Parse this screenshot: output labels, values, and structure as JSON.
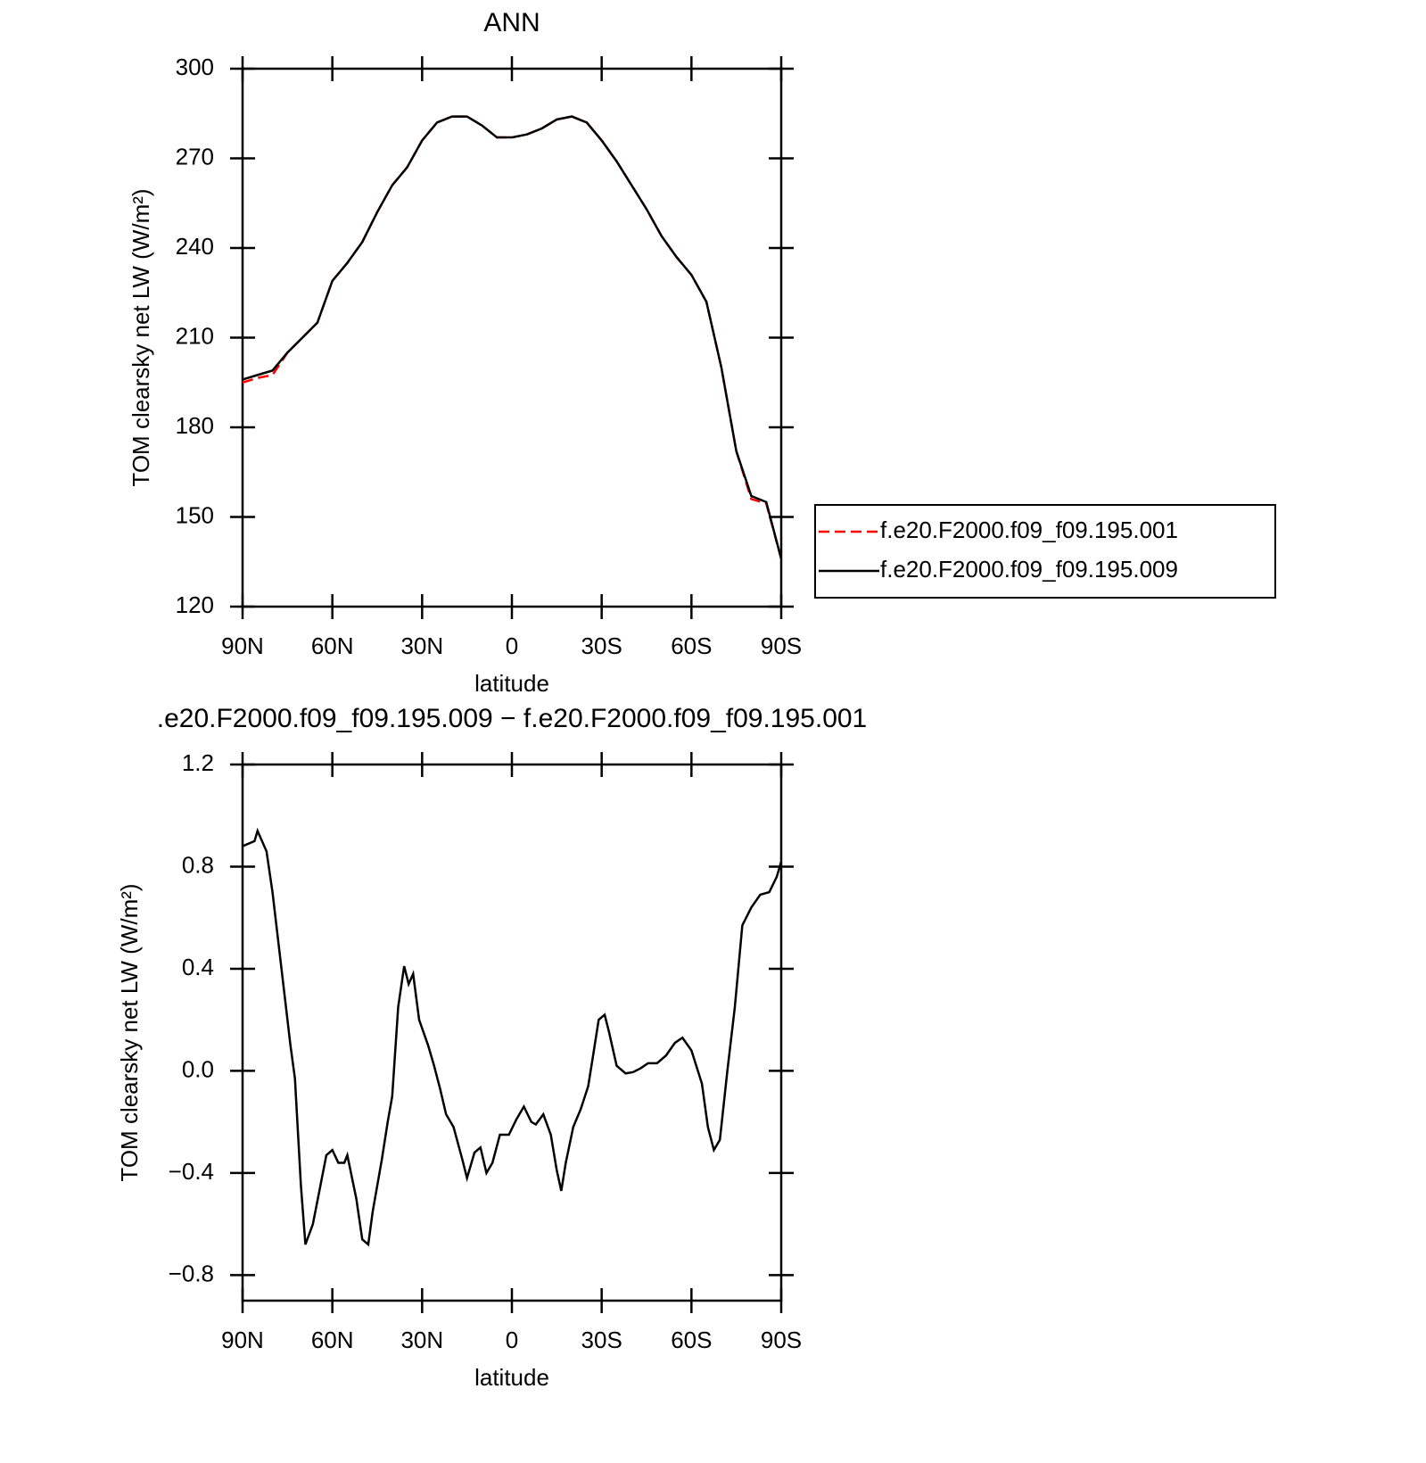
{
  "chart_data": [
    {
      "type": "line",
      "title": "ANN",
      "xlabel": "latitude",
      "ylabel": "TOM clearsky net LW (W/m²)",
      "xlim": [
        90,
        -90
      ],
      "ylim": [
        120,
        300
      ],
      "xticks": [
        {
          "value": 90,
          "label": "90N"
        },
        {
          "value": 60,
          "label": "60N"
        },
        {
          "value": 30,
          "label": "30N"
        },
        0,
        {
          "value": -30,
          "label": "30S"
        },
        {
          "value": -60,
          "label": "60S"
        },
        {
          "value": -90,
          "label": "90S"
        }
      ],
      "yticks": [
        120,
        150,
        180,
        210,
        240,
        270,
        300
      ],
      "legend": "right",
      "x": [
        90,
        85,
        80,
        75,
        70,
        65,
        60,
        55,
        50,
        45,
        40,
        35,
        30,
        25,
        20,
        15,
        10,
        5,
        0,
        -5,
        -10,
        -15,
        -20,
        -25,
        -30,
        -35,
        -40,
        -45,
        -50,
        -55,
        -60,
        -65,
        -70,
        -75,
        -80,
        -85,
        -90
      ],
      "series": [
        {
          "name": "f.e20.F2000.f09_f09.195.001",
          "color": "#ff0000",
          "dash": true,
          "values": [
            195,
            196.5,
            197.5,
            205,
            210,
            215,
            229,
            235,
            242,
            252,
            261,
            267,
            276,
            282,
            284,
            284,
            281,
            277,
            277,
            278,
            280,
            283,
            284,
            282,
            276,
            269,
            261,
            253,
            244,
            237,
            231,
            222,
            200,
            172,
            156,
            154.5,
            136
          ]
        },
        {
          "name": "f.e20.F2000.f09_f09.195.009",
          "color": "#000000",
          "dash": false,
          "values": [
            196,
            197.5,
            199,
            205,
            210,
            215,
            229,
            235,
            242,
            252,
            261,
            267,
            276,
            282,
            284,
            284,
            281,
            277,
            277,
            278,
            280,
            283,
            284,
            282,
            276,
            269,
            261,
            253,
            244,
            237,
            231,
            222,
            200,
            172,
            157,
            155,
            136
          ]
        }
      ]
    },
    {
      "type": "line",
      "title": ".e20.F2000.f09_f09.195.009 − f.e20.F2000.f09_f09.195.001",
      "xlabel": "latitude",
      "ylabel": "TOM clearsky net LW (W/m²)",
      "xlim": [
        90,
        -90
      ],
      "ylim": [
        -0.9,
        1.2
      ],
      "xticks": [
        {
          "value": 90,
          "label": "90N"
        },
        {
          "value": 60,
          "label": "60N"
        },
        {
          "value": 30,
          "label": "30N"
        },
        0,
        {
          "value": -30,
          "label": "30S"
        },
        {
          "value": -60,
          "label": "60S"
        },
        {
          "value": -90,
          "label": "90S"
        }
      ],
      "yticks": [
        {
          "value": -0.8,
          "label": "−0.8"
        },
        {
          "value": -0.4,
          "label": "−0.4"
        },
        {
          "value": 0,
          "label": "0.0"
        },
        0.4,
        0.8,
        1.2
      ],
      "x": [
        90,
        86,
        85,
        82,
        80,
        77,
        74,
        72.5,
        70.5,
        69,
        66.5,
        64,
        62,
        60,
        58,
        56,
        55,
        52,
        50,
        48,
        46.5,
        43.5,
        41.5,
        40,
        38,
        36,
        34.5,
        33,
        31,
        28,
        26,
        24,
        22,
        19.5,
        16.5,
        15,
        12.5,
        10.5,
        8.5,
        6.5,
        4,
        1,
        -1.5,
        -4,
        -6.5,
        -8,
        -10.5,
        -13,
        -15,
        -16.5,
        -18,
        -20.5,
        -23,
        -25.5,
        -27,
        -29,
        -31,
        -32.5,
        -35,
        -38,
        -40.5,
        -43,
        -45.5,
        -48.5,
        -51.5,
        -54.5,
        -57,
        -60,
        -63.5,
        -65.5,
        -67.5,
        -69.5,
        -72,
        -74.5,
        -77,
        -80,
        -83,
        -86,
        -88.5,
        -90
      ],
      "series": [
        {
          "color": "#000000",
          "dash": false,
          "values": [
            0.88,
            0.9,
            0.94,
            0.86,
            0.7,
            0.4,
            0.1,
            -0.03,
            -0.45,
            -0.68,
            -0.6,
            -0.45,
            -0.33,
            -0.31,
            -0.36,
            -0.36,
            -0.33,
            -0.5,
            -0.66,
            -0.68,
            -0.55,
            -0.35,
            -0.2,
            -0.1,
            0.25,
            0.41,
            0.34,
            0.38,
            0.2,
            0.1,
            0.02,
            -0.07,
            -0.17,
            -0.22,
            -0.35,
            -0.42,
            -0.32,
            -0.3,
            -0.4,
            -0.36,
            -0.25,
            -0.25,
            -0.19,
            -0.14,
            -0.2,
            -0.21,
            -0.17,
            -0.25,
            -0.39,
            -0.47,
            -0.36,
            -0.22,
            -0.15,
            -0.06,
            0.05,
            0.2,
            0.22,
            0.15,
            0.02,
            -0.01,
            -0.005,
            0.01,
            0.03,
            0.03,
            0.06,
            0.11,
            0.13,
            0.08,
            -0.05,
            -0.22,
            -0.31,
            -0.27,
            0,
            0.25,
            0.57,
            0.64,
            0.69,
            0.7,
            0.76,
            0.82
          ]
        }
      ]
    }
  ]
}
